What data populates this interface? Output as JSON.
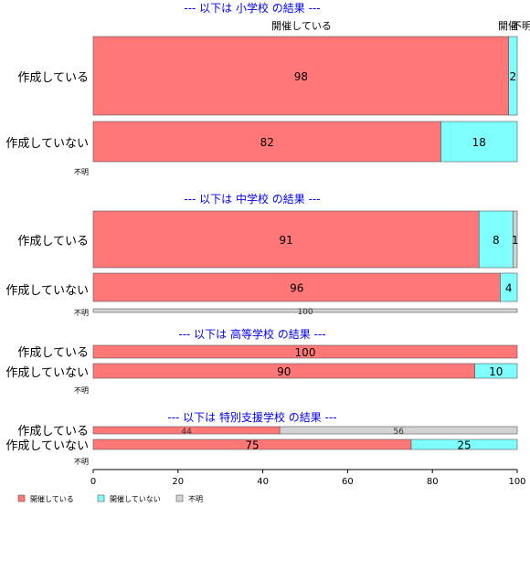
{
  "chart_data": {
    "type": "bar",
    "orientation": "horizontal",
    "stacked": true,
    "xlim": [
      0,
      100
    ],
    "x_ticks": [
      "0",
      "20",
      "40",
      "60",
      "80",
      "100"
    ],
    "top_labels": [
      "開催している",
      "開催",
      "不明"
    ],
    "legend": {
      "placement": "bottom-left",
      "items": [
        {
          "name": "開催している",
          "color": "#ff7777"
        },
        {
          "name": "開催していない",
          "color": "#80ffff"
        },
        {
          "name": "不明",
          "color": "#d3d3d3"
        }
      ]
    },
    "panels": [
      {
        "title": "--- 以下は 小学校 の結果 ---",
        "rows": [
          {
            "label": "作成している",
            "values": [
              98,
              2,
              0
            ],
            "labels": [
              "98",
              "2",
              ""
            ]
          },
          {
            "label": "作成していない",
            "values": [
              82,
              18,
              0
            ],
            "labels": [
              "82",
              "18",
              ""
            ]
          },
          {
            "label": "不明",
            "values": [
              0,
              0,
              0
            ],
            "labels": [
              "",
              "",
              ""
            ]
          }
        ]
      },
      {
        "title": "--- 以下は 中学校 の結果 ---",
        "rows": [
          {
            "label": "作成している",
            "values": [
              91,
              8,
              1
            ],
            "labels": [
              "91",
              "8",
              "1"
            ]
          },
          {
            "label": "作成していない",
            "values": [
              96,
              4,
              0
            ],
            "labels": [
              "96",
              "4",
              ""
            ]
          },
          {
            "label": "不明",
            "values": [
              0,
              0,
              100
            ],
            "labels": [
              "",
              "",
              "100"
            ]
          }
        ]
      },
      {
        "title": "--- 以下は 高等学校 の結果 ---",
        "rows": [
          {
            "label": "作成している",
            "values": [
              100,
              0,
              0
            ],
            "labels": [
              "100",
              "",
              ""
            ]
          },
          {
            "label": "作成していない",
            "values": [
              90,
              10,
              0
            ],
            "labels": [
              "90",
              "10",
              ""
            ]
          },
          {
            "label": "不明",
            "values": [
              0,
              0,
              0
            ],
            "labels": [
              "",
              "",
              ""
            ]
          }
        ]
      },
      {
        "title": "--- 以下は 特別支援学校 の結果 ---",
        "rows": [
          {
            "label": "作成している",
            "values": [
              44,
              0,
              56
            ],
            "labels": [
              "44",
              "",
              "56"
            ]
          },
          {
            "label": "作成していない",
            "values": [
              75,
              25,
              0
            ],
            "labels": [
              "75",
              "25",
              ""
            ]
          },
          {
            "label": "不明",
            "values": [
              0,
              0,
              0
            ],
            "labels": [
              "",
              "",
              ""
            ]
          }
        ]
      }
    ]
  }
}
